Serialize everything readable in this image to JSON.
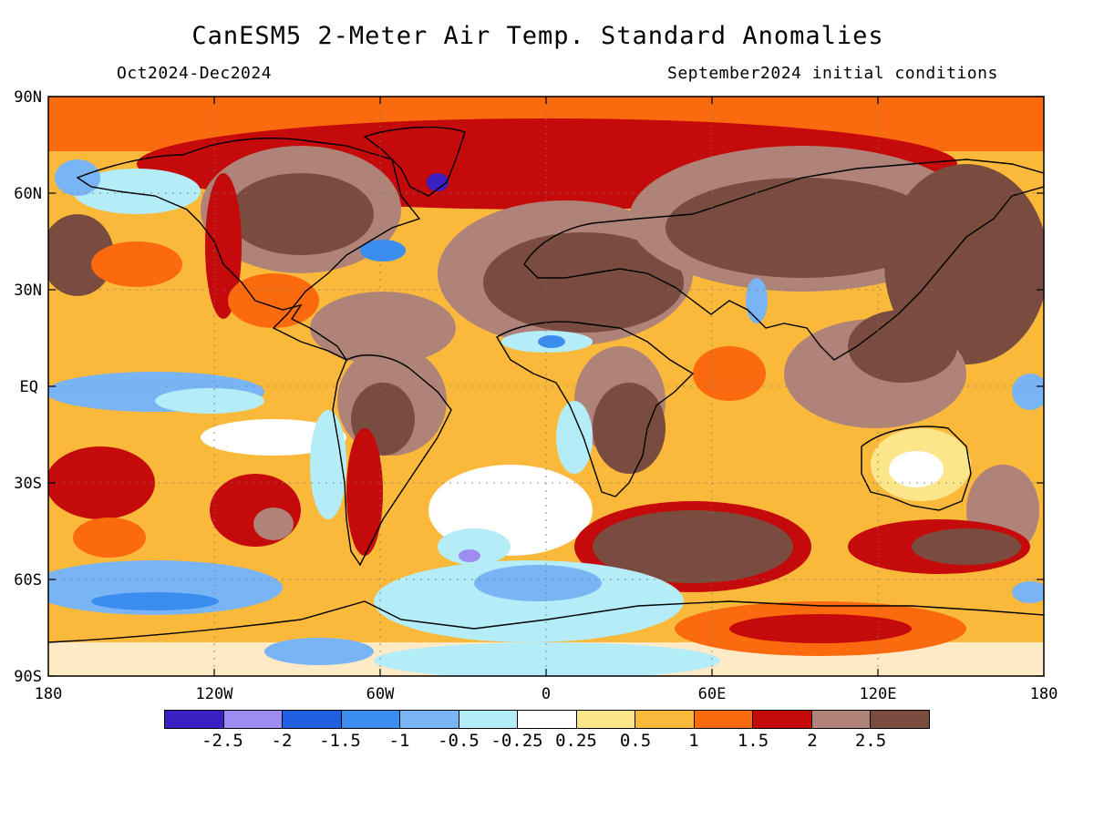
{
  "title": "CanESM5 2-Meter Air Temp. Standard Anomalies",
  "period": "Oct2024-Dec2024",
  "initial_conditions": "September2024 initial conditions",
  "lat_labels": [
    "90N",
    "60N",
    "30N",
    "EQ",
    "30S",
    "60S",
    "90S"
  ],
  "lon_labels": [
    "180",
    "120W",
    "60W",
    "0",
    "60E",
    "120E",
    "180"
  ],
  "colorbar": {
    "colors": [
      "#3b1fc2",
      "#9f8cf2",
      "#1f5fe0",
      "#3b8ef0",
      "#79b4f5",
      "#b4ecf8",
      "#ffffff",
      "#fde68a",
      "#fbb93c",
      "#fb6a0e",
      "#c40a0a",
      "#b08378",
      "#7a4c40"
    ],
    "labels": [
      "-2.5",
      "-2",
      "-1.5",
      "-1",
      "-0.5",
      "-0.25",
      "0.25",
      "0.5",
      "1",
      "1.5",
      "2",
      "2.5"
    ]
  }
}
